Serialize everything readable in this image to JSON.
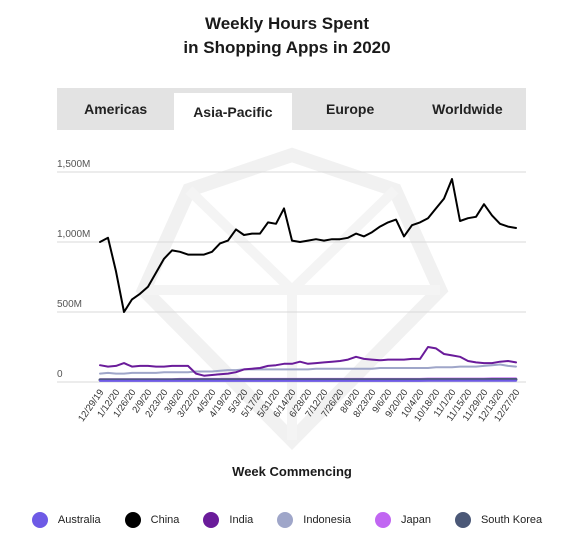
{
  "title": {
    "line1": "Weekly Hours Spent",
    "line2": "in Shopping Apps in 2020"
  },
  "tabs": [
    {
      "label": "Americas",
      "active": false
    },
    {
      "label": "Asia-Pacific",
      "active": true
    },
    {
      "label": "Europe",
      "active": false
    },
    {
      "label": "Worldwide",
      "active": false
    }
  ],
  "colors": {
    "Australia": "#6e5ae6",
    "China": "#000000",
    "India": "#6a1b9a",
    "Indonesia": "#9fa6c9",
    "Japan": "#c166f2",
    "South Korea": "#4b5877"
  },
  "chart_data": {
    "type": "line",
    "title": "Weekly Hours Spent in Shopping Apps in 2020",
    "xlabel": "Week Commencing",
    "ylabel": "",
    "ylim": [
      0,
      1500
    ],
    "yticks": [
      {
        "value": 0,
        "label": "0"
      },
      {
        "value": 500,
        "label": "500M"
      },
      {
        "value": 1000,
        "label": "1,000M"
      },
      {
        "value": 1500,
        "label": "1,500M"
      }
    ],
    "grid": true,
    "legend_position": "bottom",
    "x": [
      "12/29/19",
      "1/5/20",
      "1/12/20",
      "1/19/20",
      "1/26/20",
      "2/2/20",
      "2/9/20",
      "2/16/20",
      "2/23/20",
      "3/1/20",
      "3/8/20",
      "3/15/20",
      "3/22/20",
      "3/29/20",
      "4/5/20",
      "4/12/20",
      "4/19/20",
      "4/26/20",
      "5/3/20",
      "5/10/20",
      "5/17/20",
      "5/24/20",
      "5/31/20",
      "6/7/20",
      "6/14/20",
      "6/21/20",
      "6/28/20",
      "7/5/20",
      "7/12/20",
      "7/19/20",
      "7/26/20",
      "8/2/20",
      "8/9/20",
      "8/16/20",
      "8/23/20",
      "8/30/20",
      "9/6/20",
      "9/13/20",
      "9/20/20",
      "9/27/20",
      "10/4/20",
      "10/11/20",
      "10/18/20",
      "10/25/20",
      "11/1/20",
      "11/8/20",
      "11/15/20",
      "11/22/20",
      "11/29/20",
      "12/6/20",
      "12/13/20",
      "12/20/20",
      "12/27/20"
    ],
    "tick_labels": [
      "12/29/19",
      "1/12/20",
      "1/26/20",
      "2/9/20",
      "2/23/20",
      "3/8/20",
      "3/22/20",
      "4/5/20",
      "4/19/20",
      "5/3/20",
      "5/17/20",
      "5/31/20",
      "6/14/20",
      "6/28/20",
      "7/12/20",
      "7/26/20",
      "8/9/20",
      "8/23/20",
      "9/6/20",
      "9/20/20",
      "10/4/20",
      "10/18/20",
      "11/1/20",
      "11/15/20",
      "11/29/20",
      "12/13/20",
      "12/27/20"
    ],
    "series": [
      {
        "name": "China",
        "values": [
          1000,
          1030,
          790,
          500,
          590,
          630,
          680,
          780,
          880,
          940,
          930,
          910,
          910,
          910,
          930,
          990,
          1010,
          1090,
          1050,
          1060,
          1060,
          1140,
          1130,
          1240,
          1010,
          1000,
          1010,
          1020,
          1010,
          1020,
          1020,
          1030,
          1060,
          1040,
          1070,
          1110,
          1140,
          1160,
          1040,
          1120,
          1140,
          1170,
          1240,
          1310,
          1450,
          1150,
          1170,
          1180,
          1270,
          1190,
          1130,
          1110,
          1100
        ]
      },
      {
        "name": "India",
        "values": [
          120,
          110,
          115,
          135,
          110,
          115,
          115,
          110,
          110,
          115,
          115,
          115,
          60,
          45,
          50,
          55,
          60,
          70,
          90,
          95,
          100,
          115,
          120,
          130,
          130,
          145,
          130,
          135,
          140,
          145,
          150,
          160,
          180,
          165,
          160,
          155,
          160,
          160,
          160,
          165,
          165,
          250,
          240,
          200,
          190,
          180,
          150,
          140,
          135,
          135,
          145,
          150,
          140
        ]
      },
      {
        "name": "Indonesia",
        "values": [
          60,
          65,
          60,
          60,
          65,
          65,
          65,
          65,
          70,
          70,
          70,
          70,
          75,
          75,
          75,
          80,
          85,
          85,
          90,
          90,
          90,
          90,
          90,
          90,
          90,
          90,
          90,
          95,
          95,
          95,
          95,
          95,
          95,
          95,
          95,
          100,
          100,
          100,
          100,
          100,
          100,
          100,
          105,
          105,
          105,
          110,
          110,
          110,
          115,
          120,
          125,
          115,
          110
        ]
      },
      {
        "name": "Japan",
        "values": [
          20,
          20,
          20,
          20,
          20,
          20,
          20,
          20,
          20,
          20,
          22,
          22,
          22,
          22,
          22,
          22,
          22,
          22,
          22,
          22,
          22,
          22,
          22,
          22,
          22,
          22,
          22,
          22,
          22,
          22,
          22,
          22,
          22,
          22,
          22,
          22,
          22,
          22,
          22,
          22,
          22,
          24,
          24,
          24,
          24,
          24,
          24,
          24,
          24,
          26,
          26,
          26,
          26
        ]
      },
      {
        "name": "South Korea",
        "values": [
          15,
          15,
          15,
          15,
          15,
          15,
          15,
          15,
          15,
          15,
          16,
          16,
          16,
          16,
          16,
          16,
          16,
          16,
          16,
          16,
          16,
          16,
          16,
          16,
          16,
          16,
          16,
          16,
          16,
          16,
          16,
          16,
          16,
          16,
          16,
          16,
          16,
          16,
          16,
          16,
          16,
          17,
          17,
          17,
          17,
          17,
          17,
          17,
          17,
          18,
          18,
          18,
          18
        ]
      },
      {
        "name": "Australia",
        "values": [
          8,
          8,
          8,
          8,
          8,
          8,
          8,
          8,
          8,
          8,
          8,
          8,
          8,
          8,
          8,
          8,
          8,
          8,
          8,
          8,
          8,
          8,
          8,
          8,
          8,
          8,
          8,
          8,
          8,
          8,
          8,
          8,
          8,
          8,
          8,
          8,
          8,
          8,
          8,
          8,
          8,
          9,
          9,
          9,
          9,
          9,
          9,
          9,
          9,
          9,
          9,
          9,
          9
        ]
      }
    ]
  },
  "legend": [
    {
      "name": "Australia"
    },
    {
      "name": "China"
    },
    {
      "name": "India"
    },
    {
      "name": "Indonesia"
    },
    {
      "name": "Japan"
    },
    {
      "name": "South Korea"
    }
  ]
}
